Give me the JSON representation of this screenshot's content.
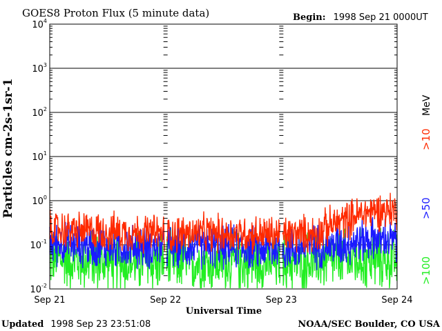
{
  "header": {
    "title": "GOES8 Proton Flux (5 minute data)",
    "begin_label": "Begin:",
    "begin_value": "1998 Sep 21 0000UT"
  },
  "footer": {
    "updated_label": "Updated",
    "updated_value": "1998 Sep 23 23:51:08",
    "credit": "NOAA/SEC Boulder, CO USA"
  },
  "chart_data": {
    "type": "line",
    "title": "GOES8 Proton Flux (5 minute data)",
    "xlabel": "Universal Time",
    "ylabel": "Particles cm-2s-1sr-1",
    "y_scale": "log",
    "ylim": [
      0.01,
      10000
    ],
    "y_ticks": [
      {
        "base": "10",
        "exp": "-2"
      },
      {
        "base": "10",
        "exp": "-1"
      },
      {
        "base": "10",
        "exp": "0"
      },
      {
        "base": "10",
        "exp": "1"
      },
      {
        "base": "10",
        "exp": "2"
      },
      {
        "base": "10",
        "exp": "3"
      },
      {
        "base": "10",
        "exp": "4"
      }
    ],
    "x_ticks": [
      "Sep 21",
      "Sep 22",
      "Sep 23",
      "Sep 24"
    ],
    "x_range_days": [
      0,
      3
    ],
    "grid": true,
    "legend_placement": "right",
    "series": [
      {
        "name": ">10",
        "unit": "MeV",
        "color": "#ff2a00",
        "profile": [
          [
            0,
            0.22
          ],
          [
            0.5,
            0.2
          ],
          [
            1,
            0.18
          ],
          [
            1.5,
            0.18
          ],
          [
            2,
            0.17
          ],
          [
            2.3,
            0.18
          ],
          [
            2.6,
            0.4
          ],
          [
            2.8,
            0.6
          ],
          [
            3,
            0.6
          ]
        ],
        "noise": 0.35
      },
      {
        "name": ">50",
        "color": "#1a1aff",
        "profile": [
          [
            0,
            0.11
          ],
          [
            0.5,
            0.09
          ],
          [
            1,
            0.09
          ],
          [
            1.5,
            0.09
          ],
          [
            2,
            0.08
          ],
          [
            2.5,
            0.1
          ],
          [
            2.8,
            0.14
          ],
          [
            3,
            0.12
          ]
        ],
        "noise": 0.4
      },
      {
        "name": ">100",
        "color": "#22ee22",
        "profile": [
          [
            0,
            0.05
          ],
          [
            0.5,
            0.04
          ],
          [
            1,
            0.04
          ],
          [
            1.5,
            0.04
          ],
          [
            2,
            0.04
          ],
          [
            2.5,
            0.045
          ],
          [
            3,
            0.045
          ]
        ],
        "noise": 0.55
      }
    ]
  }
}
